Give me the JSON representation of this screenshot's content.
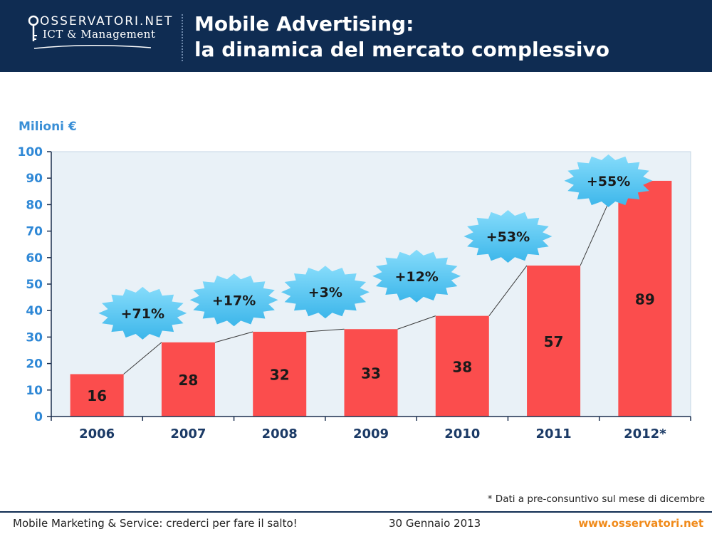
{
  "header": {
    "logo_top": "OSSERVATORI.NET",
    "logo_sub": "ICT & Management",
    "title_line1": "Mobile Advertising:",
    "title_line2": "la dinamica del mercato complessivo"
  },
  "colors": {
    "header_bg": "#0f2c52",
    "bar": "#fb4d4d",
    "plot_bg": "#e9f1f7",
    "burst": "#52c4f0",
    "axis_text": "#1b3a66",
    "accent": "#3a8fd6",
    "link": "#f08a1a"
  },
  "chart_data": {
    "type": "bar",
    "title": "Mobile Advertising: la dinamica del mercato complessivo",
    "ylabel": "Milioni €",
    "xlabel": "",
    "ylim": [
      0,
      100
    ],
    "yticks": [
      0,
      10,
      20,
      30,
      40,
      50,
      60,
      70,
      80,
      90,
      100
    ],
    "categories": [
      "2006",
      "2007",
      "2008",
      "2009",
      "2010",
      "2011",
      "2012*"
    ],
    "values": [
      16,
      28,
      32,
      33,
      38,
      57,
      89
    ],
    "value_labels": [
      "16",
      "28",
      "32",
      "33",
      "38",
      "57",
      "89"
    ],
    "growth_labels": [
      "+71%",
      "+17%",
      "+3%",
      "+12%",
      "+53%",
      "+55%"
    ],
    "growth_centers": [
      [
        1.0,
        39
      ],
      [
        2.0,
        44
      ],
      [
        3.0,
        47
      ],
      [
        4.0,
        53
      ],
      [
        5.0,
        68
      ],
      [
        6.1,
        89
      ]
    ]
  },
  "footnote": "* Dati a pre-consuntivo sul mese di dicembre",
  "footer": {
    "left": "Mobile Marketing & Service: crederci per fare il salto!",
    "center": "30 Gennaio 2013",
    "right": "www.osservatori.net"
  }
}
